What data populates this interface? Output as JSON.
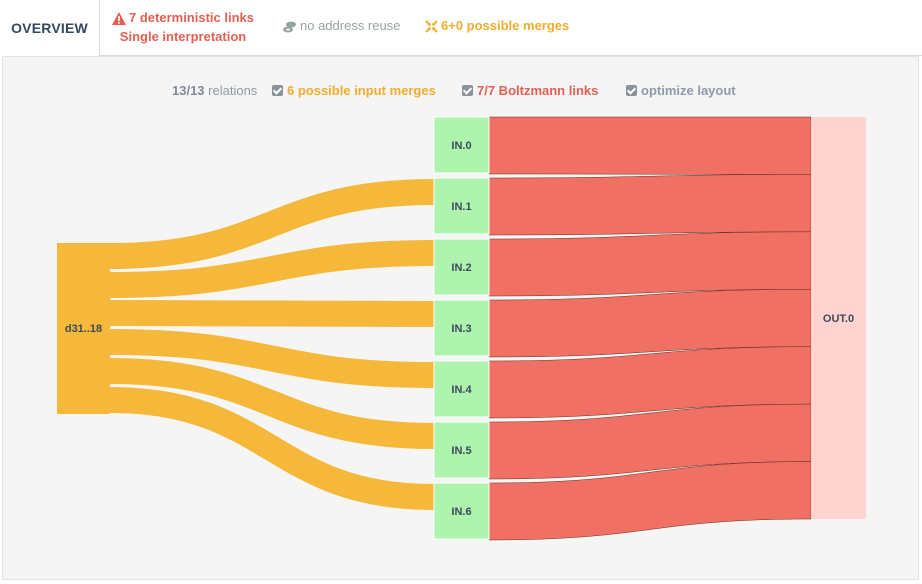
{
  "header": {
    "tab_label": "OVERVIEW",
    "deterministic_links": "7 deterministic links",
    "interpretation": "Single interpretation",
    "address_reuse": "no address reuse",
    "possible_merges": "6+0 possible merges"
  },
  "controls": {
    "relations_count": "13/13",
    "relations_label": "relations",
    "input_merges": "6 possible input merges",
    "boltzmann_links": "7/7 Boltzmann links",
    "optimize_layout": "optimize layout"
  },
  "colors": {
    "merge_flow": "#f6b83a",
    "boltzmann_flow": "#f07063",
    "input_node": "#aef4ae",
    "output_node": "#ffd3d0",
    "source_node": "#f6b83a"
  },
  "icons": {
    "deterministic": "warning-triangle-icon",
    "reuse": "address-reuse-icon",
    "merges": "merge-arrows-icon",
    "checkbox": "checkbox-checked-icon"
  },
  "sankey": {
    "source": "d31..18",
    "inputs": [
      "IN.0",
      "IN.1",
      "IN.2",
      "IN.3",
      "IN.4",
      "IN.5",
      "IN.6"
    ],
    "output": "OUT.0"
  }
}
